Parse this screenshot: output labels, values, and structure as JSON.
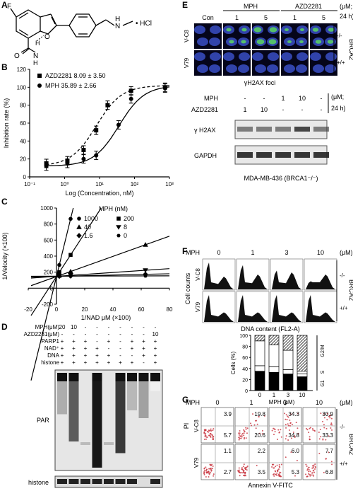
{
  "panel_labels": {
    "A": "A",
    "B": "B",
    "C": "C",
    "D": "D",
    "E": "E",
    "F": "F",
    "G": "G"
  },
  "panel_a": {
    "F": "F",
    "O": "O",
    "H_bond": "H",
    "NH_label": "N",
    "H_label": "H",
    "O2": "O",
    "N_amine": "N",
    "H_amine": "H",
    "hcl": "• HCl"
  },
  "chart_data": [
    {
      "id": "B",
      "type": "line",
      "xlabel": "Log (Concentration, nM)",
      "ylabel": "Inhibition rate (%)",
      "ylim": [
        0,
        120
      ],
      "xlog": true,
      "xlim": [
        0.1,
        1000
      ],
      "xticks": [
        "10⁻¹",
        "10⁰",
        "10¹",
        "10²",
        "10³"
      ],
      "yticks": [
        "0",
        "20",
        "40",
        "60",
        "80",
        "100",
        "120"
      ],
      "series": [
        {
          "name": "AZD2281",
          "label_value": "8.09 ± 3.50",
          "marker": "square",
          "dash": true,
          "x": [
            0.3,
            1.2,
            3.5,
            8,
            17,
            80,
            750
          ],
          "y": [
            15,
            18,
            30,
            52,
            80,
            96,
            100
          ],
          "ic50": 8.09
        },
        {
          "name": "MPH",
          "label_value": "35.89 ± 2.66",
          "marker": "circle",
          "dash": false,
          "x": [
            0.3,
            1.2,
            3.5,
            8,
            35,
            80,
            750
          ],
          "y": [
            12,
            15,
            20,
            24,
            58,
            87,
            99
          ],
          "ic50": 35.89
        }
      ]
    },
    {
      "id": "C",
      "type": "line",
      "xlabel": "1/NAD μM (×100)",
      "ylabel": "1/Velocity (×100)",
      "xlim": [
        -20,
        80
      ],
      "ylim": [
        -200,
        1000
      ],
      "xticks": [
        "-20",
        "0",
        "20",
        "40",
        "60",
        "80"
      ],
      "yticks": [
        "-200",
        "0",
        "200",
        "400",
        "600",
        "800",
        "1000"
      ],
      "legend_title": "MPH (nM)",
      "series": [
        {
          "name": "1000",
          "marker": "circle",
          "slope": 72,
          "intercept": 145,
          "points_x": [
            2,
            10
          ]
        },
        {
          "name": "200",
          "marker": "square",
          "slope": 27,
          "intercept": 145,
          "points_x": [
            2,
            10
          ]
        },
        {
          "name": "40",
          "marker": "triangle",
          "slope": 6.3,
          "intercept": 145,
          "points_x": [
            2,
            10,
            63
          ]
        },
        {
          "name": "8",
          "marker": "tri-down",
          "slope": 1.2,
          "intercept": 148,
          "points_x": [
            2,
            10,
            63
          ]
        },
        {
          "name": "1.6",
          "marker": "diamond",
          "slope": 0.4,
          "intercept": 148,
          "points_x": [
            2,
            10,
            63
          ]
        },
        {
          "name": "0",
          "marker": "hexagon",
          "slope": 0.05,
          "intercept": 150,
          "points_x": [
            2,
            10,
            63
          ]
        }
      ]
    },
    {
      "id": "F-bar",
      "type": "bar",
      "stacked": true,
      "ylabel": "Cells (%)",
      "xlabel": "MPH (μM)",
      "categories": [
        "0",
        "1",
        "3",
        "10"
      ],
      "ylim": [
        0,
        100
      ],
      "yticks": [
        "0",
        "20",
        "40",
        "60",
        "80",
        "100"
      ],
      "series": [
        {
          "name": "G1",
          "values": [
            35,
            33,
            30,
            25
          ]
        },
        {
          "name": "S",
          "values": [
            10,
            10,
            8,
            5
          ]
        },
        {
          "name": "",
          "values": [
            45,
            40,
            35,
            5
          ]
        },
        {
          "name": "G2/M",
          "values": [
            10,
            17,
            27,
            65
          ]
        }
      ]
    }
  ],
  "panel_d": {
    "rows": [
      {
        "label": "MPH(μM)",
        "values": [
          "20",
          "10",
          "-",
          "-",
          "-",
          "-",
          "-",
          "-",
          "-"
        ]
      },
      {
        "label": "AZD2281(μM)",
        "values": [
          "-",
          "-",
          "-",
          "-",
          "-",
          "-",
          "-",
          "-",
          "10"
        ]
      },
      {
        "label": "PARP1",
        "values": [
          "+",
          "+",
          "+",
          "-",
          "+",
          "-",
          "+",
          "+",
          "+"
        ]
      },
      {
        "label": "NAD⁺",
        "values": [
          "+",
          "+",
          "+",
          "+",
          "-",
          "-",
          "+",
          "+",
          "+"
        ]
      },
      {
        "label": "DNA",
        "values": [
          "+",
          "+",
          "+",
          "+",
          "+",
          "-",
          "-",
          "+",
          "+"
        ]
      },
      {
        "label": "histone",
        "values": [
          "+",
          "+",
          "+",
          "+",
          "+",
          "+",
          "+",
          "-",
          "+"
        ]
      }
    ],
    "blot_par": "PAR",
    "blot_histone": "histone",
    "par_intensity": [
      0.35,
      0.7,
      0.0,
      1.0,
      0.0,
      0.85,
      0.3,
      0.4,
      0.05
    ]
  },
  "panel_e": {
    "con": "Con",
    "mph": "MPH",
    "azd": "AZD2281",
    "doses": [
      "1",
      "5",
      "1",
      "5"
    ],
    "unit": "(μM;",
    "time": "24 h)",
    "row_labels": [
      "V-C8",
      "V79"
    ],
    "genotypes": [
      "-/-",
      "+/+"
    ],
    "brca": "BRCA2",
    "caption": "γH2AX foci",
    "wb_rows": [
      {
        "label": "MPH",
        "values": [
          "-",
          "-",
          "1",
          "10",
          "-"
        ]
      },
      {
        "label": "AZD2281",
        "values": [
          "1",
          "10",
          "-",
          "-",
          "-"
        ]
      }
    ],
    "wb_unit": "(μM;",
    "wb_time": "24 h)",
    "wb_bands": [
      "γ H2AX",
      "GAPDH"
    ],
    "wb_caption": "MDA-MB-436 (BRCA1⁻/⁻)"
  },
  "panel_f": {
    "mph": "MPH",
    "doses": [
      "0",
      "1",
      "3",
      "10"
    ],
    "unit": "(μM)",
    "ylabel": "Cell counts",
    "row_labels": [
      "V-C8",
      "V79"
    ],
    "genotypes": [
      "-/-",
      "+/+"
    ],
    "brca": "BRCA2",
    "xlabel": "DNA content (FL2-A)",
    "bar_labels": [
      "G2/M",
      "S",
      "G1"
    ]
  },
  "panel_g": {
    "mph": "MPH",
    "doses": [
      "0",
      "1",
      "3",
      "10"
    ],
    "unit": "(μM)",
    "ylabel": "PI",
    "xlabel": "Annexin V-FITC",
    "row_labels": [
      "V-C8",
      "V79"
    ],
    "genotypes": [
      "-/-",
      "+/+"
    ],
    "brca": "BRCA2",
    "values_top_row": [
      [
        "3.9",
        "5.7"
      ],
      [
        "19.8",
        "20.6"
      ],
      [
        "34.3",
        "34.8"
      ],
      [
        "30.9",
        "33.3"
      ]
    ],
    "values_bottom_row": [
      [
        "1.1",
        "2.7"
      ],
      [
        "2.2",
        "3.5"
      ],
      [
        "6.0",
        "5.3"
      ],
      [
        "7.7",
        "6.8"
      ]
    ]
  }
}
